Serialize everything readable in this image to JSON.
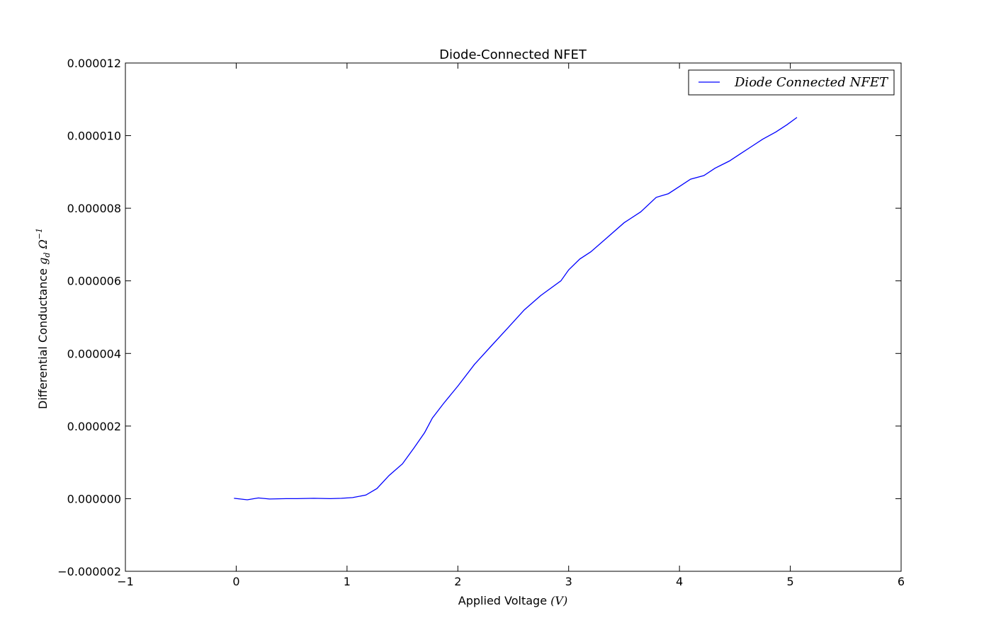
{
  "chart_data": {
    "type": "line",
    "title": "Diode-Connected NFET",
    "xlabel": {
      "text": "Applied Voltage ",
      "math": "(V)"
    },
    "ylabel": {
      "text": "Differential Conductance ",
      "math_g": "g",
      "math_sub": "d",
      "math_unit": " Ω",
      "math_sup": "−1"
    },
    "xlim": [
      -1,
      6
    ],
    "ylim": [
      -2e-06,
      1.2e-05
    ],
    "xticks": [
      {
        "value": -1,
        "label": "−1"
      },
      {
        "value": 0,
        "label": "0"
      },
      {
        "value": 1,
        "label": "1"
      },
      {
        "value": 2,
        "label": "2"
      },
      {
        "value": 3,
        "label": "3"
      },
      {
        "value": 4,
        "label": "4"
      },
      {
        "value": 5,
        "label": "5"
      },
      {
        "value": 6,
        "label": "6"
      }
    ],
    "yticks": [
      {
        "value": -2e-06,
        "label": "−0.000002"
      },
      {
        "value": 0,
        "label": "0.000000"
      },
      {
        "value": 2e-06,
        "label": "0.000002"
      },
      {
        "value": 4e-06,
        "label": "0.000004"
      },
      {
        "value": 6e-06,
        "label": "0.000006"
      },
      {
        "value": 8e-06,
        "label": "0.000008"
      },
      {
        "value": 1e-05,
        "label": "0.000010"
      },
      {
        "value": 1.2e-05,
        "label": "0.000012"
      }
    ],
    "grid": false,
    "legend_position": "top-right",
    "series": [
      {
        "name": "Diode Connected NFET",
        "color": "#0000ff",
        "x": [
          -0.02,
          0.1,
          0.2,
          0.3,
          0.45,
          0.55,
          0.7,
          0.85,
          0.95,
          1.05,
          1.17,
          1.27,
          1.38,
          1.5,
          1.6,
          1.7,
          1.77,
          1.87,
          2.0,
          2.15,
          2.3,
          2.45,
          2.6,
          2.75,
          2.93,
          3.0,
          3.1,
          3.2,
          3.35,
          3.5,
          3.65,
          3.79,
          3.9,
          4.0,
          4.1,
          4.22,
          4.32,
          4.45,
          4.55,
          4.65,
          4.75,
          4.87,
          4.97,
          5.06
        ],
        "y": [
          1e-08,
          -3e-08,
          2e-08,
          -1e-08,
          0.0,
          0.0,
          1e-08,
          0.0,
          1e-08,
          3e-08,
          1e-07,
          2.8e-07,
          6.4e-07,
          9.6e-07,
          1.38e-06,
          1.82e-06,
          2.22e-06,
          2.62e-06,
          3.1e-06,
          3.7e-06,
          4.2e-06,
          4.7e-06,
          5.2e-06,
          5.6e-06,
          6e-06,
          6.3e-06,
          6.6e-06,
          6.8e-06,
          7.2e-06,
          7.6e-06,
          7.9e-06,
          8.3e-06,
          8.4e-06,
          8.6e-06,
          8.8e-06,
          8.9e-06,
          9.1e-06,
          9.3e-06,
          9.5e-06,
          9.7e-06,
          9.9e-06,
          1.01e-05,
          1.03e-05,
          1.05e-05
        ]
      }
    ]
  }
}
